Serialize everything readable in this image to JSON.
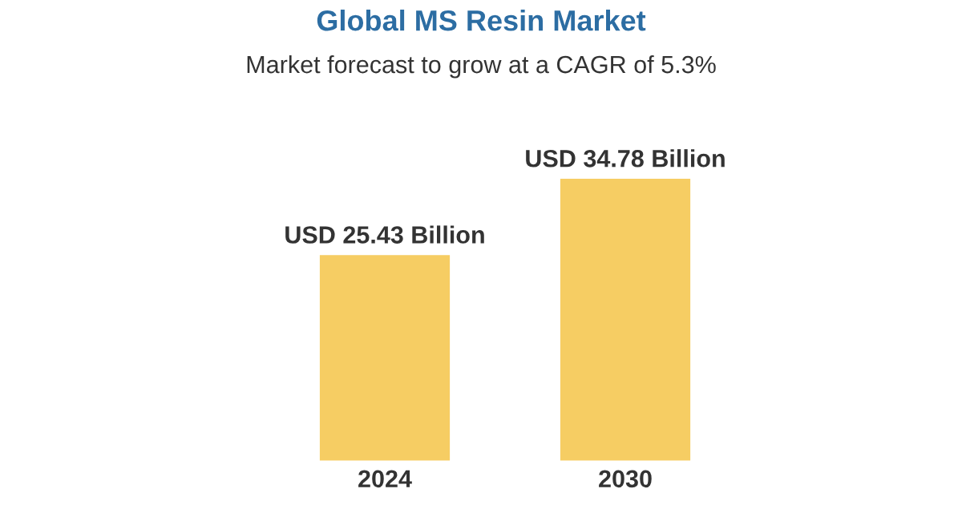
{
  "chart_data": {
    "type": "bar",
    "title": "Global MS Resin Market",
    "subtitle": "Market forecast to grow at a CAGR of 5.3%",
    "categories": [
      "2024",
      "2030"
    ],
    "series": [
      {
        "color": "#f6cd63",
        "values": [
          25.43,
          34.78
        ],
        "value_labels": [
          "USD 25.43 Billion",
          "USD 34.78 Billion"
        ]
      }
    ],
    "grid": false,
    "legend": false
  }
}
